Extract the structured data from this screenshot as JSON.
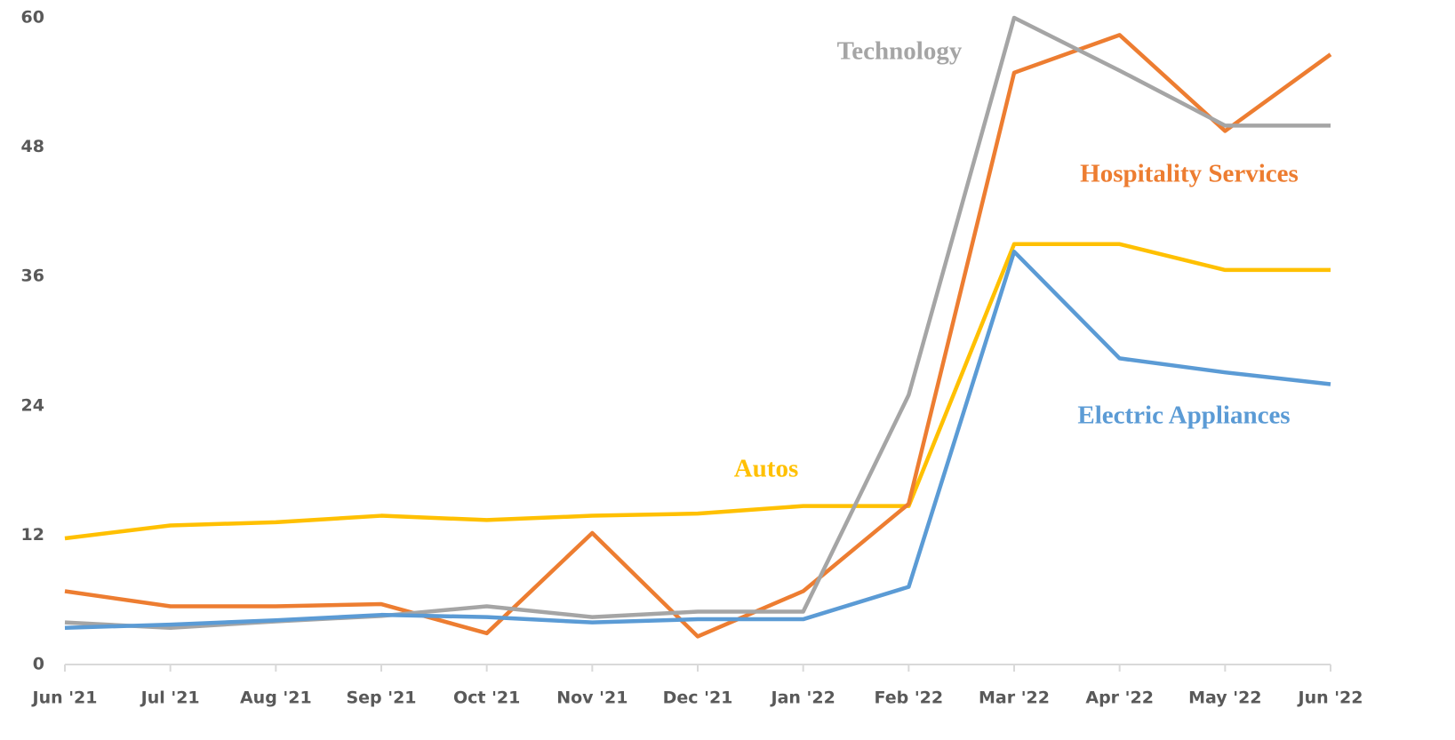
{
  "chart_data": {
    "type": "line",
    "categories": [
      "Jun '21",
      "Jul '21",
      "Aug '21",
      "Sep '21",
      "Oct '21",
      "Nov '21",
      "Dec '21",
      "Jan '22",
      "Feb '22",
      "Mar '22",
      "Apr '22",
      "May '22",
      "Jun '22"
    ],
    "series": [
      {
        "name": "Autos",
        "color": "#ffc000",
        "values": [
          11.7,
          12.9,
          13.2,
          13.8,
          13.4,
          13.8,
          14.0,
          14.7,
          14.7,
          39.0,
          39.0,
          36.6,
          36.6
        ]
      },
      {
        "name": "Hospitality Services",
        "color": "#ed7d31",
        "values": [
          6.8,
          5.4,
          5.4,
          5.6,
          2.9,
          12.2,
          2.6,
          6.8,
          14.9,
          54.9,
          58.4,
          49.5,
          56.6
        ]
      },
      {
        "name": "Technology",
        "color": "#a5a5a5",
        "values": [
          3.9,
          3.4,
          4.0,
          4.5,
          5.4,
          4.4,
          4.9,
          4.9,
          25.0,
          60,
          55.1,
          50,
          50
        ]
      },
      {
        "name": "Electric Appliances",
        "color": "#5b9bd5",
        "values": [
          3.4,
          3.7,
          4.1,
          4.6,
          4.4,
          3.9,
          4.2,
          4.2,
          7.2,
          38.3,
          28.4,
          27.1,
          26.0
        ]
      }
    ],
    "ylim": [
      0,
      60
    ],
    "yticks": [
      0,
      12,
      24,
      36,
      48,
      60
    ],
    "grid": false
  }
}
